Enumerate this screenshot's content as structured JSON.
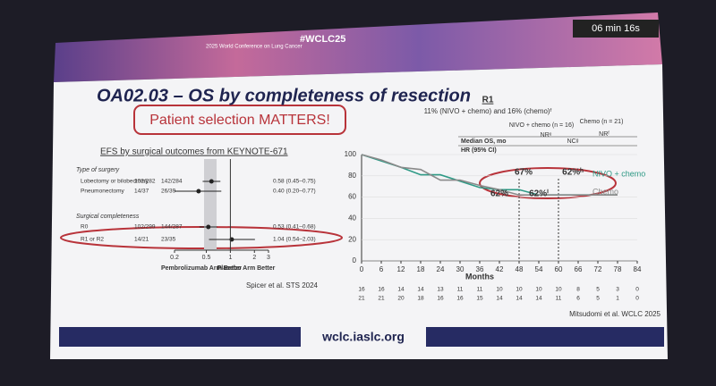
{
  "header": {
    "conference": "2025 World Conference on Lung Cancer",
    "hashtag": "#WCLC25",
    "timer": "06 min 16s"
  },
  "slide": {
    "title": "OA02.03 – OS by completeness of resection",
    "callout": "Patient selection MATTERS!",
    "footer_url": "wclc.iaslc.org"
  },
  "forest": {
    "title": "EFS by surgical outcomes from KEYNOTE-671",
    "groups": [
      {
        "label": "Type of surgery",
        "rows": [
          {
            "label": "Lobectomy or bilobectomy",
            "arm1": "102/282",
            "arm2": "142/284",
            "hr": 0.58,
            "lo": 0.45,
            "hi": 0.75,
            "ci_label": "0.58 (0.45–0.75)"
          },
          {
            "label": "Pneumonectomy",
            "arm1": "14/37",
            "arm2": "26/39",
            "hr": 0.4,
            "lo": 0.2,
            "hi": 0.77,
            "ci_label": "0.40 (0.20–0.77)"
          }
        ]
      },
      {
        "label": "Surgical completeness",
        "rows": [
          {
            "label": "R0",
            "arm1": "102/299",
            "arm2": "144/287",
            "hr": 0.53,
            "lo": 0.41,
            "hi": 0.68,
            "ci_label": "0.53 (0.41–0.68)"
          },
          {
            "label": "R1 or R2",
            "arm1": "14/21",
            "arm2": "23/35",
            "hr": 1.04,
            "lo": 0.54,
            "hi": 2.03,
            "ci_label": "1.04 (0.54–2.03)"
          }
        ]
      }
    ],
    "xlim": [
      0.2,
      3
    ],
    "xticks": [
      0.2,
      0.5,
      1,
      2,
      3
    ],
    "log_scale": true,
    "left_label": "Pembrolizumab Arm Better",
    "right_label": "Placebo Arm Better",
    "source": "Spicer et al. STS 2024"
  },
  "km": {
    "heading": "R1",
    "subtitle": "11% (NIVO + chemo) and 16% (chemo)ᶠ",
    "table": {
      "columns": [
        "NIVO + chemo (n = 16)",
        "Chemo (n = 21)"
      ],
      "rows": [
        {
          "label": "Median OS, mo",
          "cells": [
            "NRᵉ",
            "NRᶠ"
          ]
        },
        {
          "label": "HR (95% CI)",
          "cells": [
            "NCᵍ"
          ]
        }
      ]
    },
    "x": [
      0,
      6,
      12,
      18,
      24,
      30,
      36,
      42,
      48,
      54,
      60,
      66,
      72,
      78
    ],
    "series": [
      {
        "name": "NIVO + chemo",
        "color": "#2f9a86",
        "values": [
          100,
          94,
          88,
          81,
          81,
          75,
          69,
          67,
          67,
          62,
          62,
          62,
          62,
          62
        ]
      },
      {
        "name": "Chemo",
        "color": "#8a8a8a",
        "values": [
          100,
          95,
          88,
          86,
          76,
          76,
          71,
          67,
          62,
          62,
          62,
          62,
          62,
          62
        ]
      }
    ],
    "xlim": [
      0,
      84
    ],
    "xticks": [
      0,
      6,
      12,
      18,
      24,
      30,
      36,
      42,
      48,
      54,
      60,
      66,
      72,
      78,
      84
    ],
    "ylim": [
      0,
      100
    ],
    "yticks": [
      0,
      20,
      40,
      60,
      80,
      100
    ],
    "xlabel": "Months",
    "annotations": [
      "67%",
      "62%ʰ",
      "62%",
      "62%ⁱ"
    ],
    "at_risk": [
      [
        16,
        16,
        14,
        14,
        13,
        11,
        11,
        10,
        10,
        10,
        10,
        8,
        5,
        3,
        0
      ],
      [
        21,
        21,
        20,
        18,
        16,
        16,
        15,
        14,
        14,
        14,
        11,
        6,
        5,
        1,
        0
      ]
    ],
    "source": "Mitsudomi et al. WCLC 2025"
  }
}
